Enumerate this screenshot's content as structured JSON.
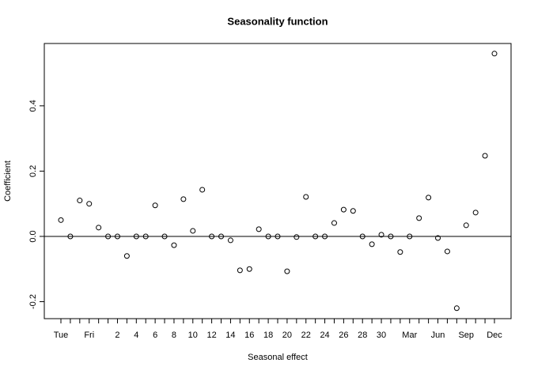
{
  "chart_data": {
    "type": "scatter",
    "title": "Seasonality function",
    "x_label": "Seasonal effect",
    "y_label": "Coefficient",
    "categories": [
      "Tue",
      null,
      null,
      "Fri",
      null,
      null,
      "2",
      null,
      "4",
      null,
      "6",
      null,
      "8",
      null,
      "10",
      null,
      "12",
      null,
      "14",
      null,
      "16",
      null,
      "18",
      null,
      "20",
      null,
      "22",
      null,
      "24",
      null,
      "26",
      null,
      "28",
      null,
      "30",
      null,
      null,
      "Mar",
      null,
      null,
      "Jun",
      null,
      null,
      "Sep",
      null,
      null,
      "Dec"
    ],
    "values": [
      0.05,
      0,
      0.11,
      0.1,
      0.027,
      0,
      0,
      -0.06,
      0,
      0,
      0.095,
      0,
      -0.027,
      0.114,
      0.017,
      0.143,
      0,
      0,
      -0.012,
      -0.104,
      -0.1,
      0.022,
      0,
      0,
      -0.107,
      -0.002,
      0.121,
      0,
      0,
      0.041,
      0.082,
      0.078,
      0,
      -0.024,
      0.005,
      0,
      -0.048,
      0,
      0.056,
      0.119,
      -0.005,
      -0.046,
      -0.22,
      0.034,
      0.073,
      0.247,
      0.56
    ],
    "color": "#000000",
    "hline": 0,
    "ylim": [
      -0.252,
      0.591
    ],
    "yticks": [
      -0.2,
      {
        "value": 0,
        "label": "0.0"
      },
      0.2,
      0.4
    ]
  }
}
